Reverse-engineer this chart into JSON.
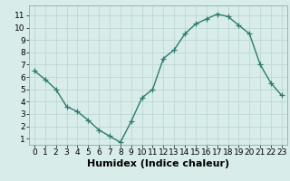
{
  "x": [
    0,
    1,
    2,
    3,
    4,
    5,
    6,
    7,
    8,
    9,
    10,
    11,
    12,
    13,
    14,
    15,
    16,
    17,
    18,
    19,
    20,
    21,
    22,
    23
  ],
  "y": [
    6.5,
    5.8,
    5.0,
    3.6,
    3.2,
    2.5,
    1.7,
    1.2,
    0.7,
    2.4,
    4.3,
    5.0,
    7.5,
    8.2,
    9.5,
    10.3,
    10.7,
    11.1,
    10.9,
    10.2,
    9.5,
    7.0,
    5.5,
    4.5
  ],
  "xlabel": "Humidex (Indice chaleur)",
  "xlim_min": -0.5,
  "xlim_max": 23.5,
  "ylim_min": 0.5,
  "ylim_max": 11.8,
  "yticks": [
    1,
    2,
    3,
    4,
    5,
    6,
    7,
    8,
    9,
    10,
    11
  ],
  "xticks": [
    0,
    1,
    2,
    3,
    4,
    5,
    6,
    7,
    8,
    9,
    10,
    11,
    12,
    13,
    14,
    15,
    16,
    17,
    18,
    19,
    20,
    21,
    22,
    23
  ],
  "line_color": "#2d7a6e",
  "marker": "+",
  "marker_size": 4,
  "bg_color": "#d8ecea",
  "grid_color": "#b8d4d0",
  "tick_label_fontsize": 6.5,
  "xlabel_fontsize": 8,
  "line_width": 1.0
}
